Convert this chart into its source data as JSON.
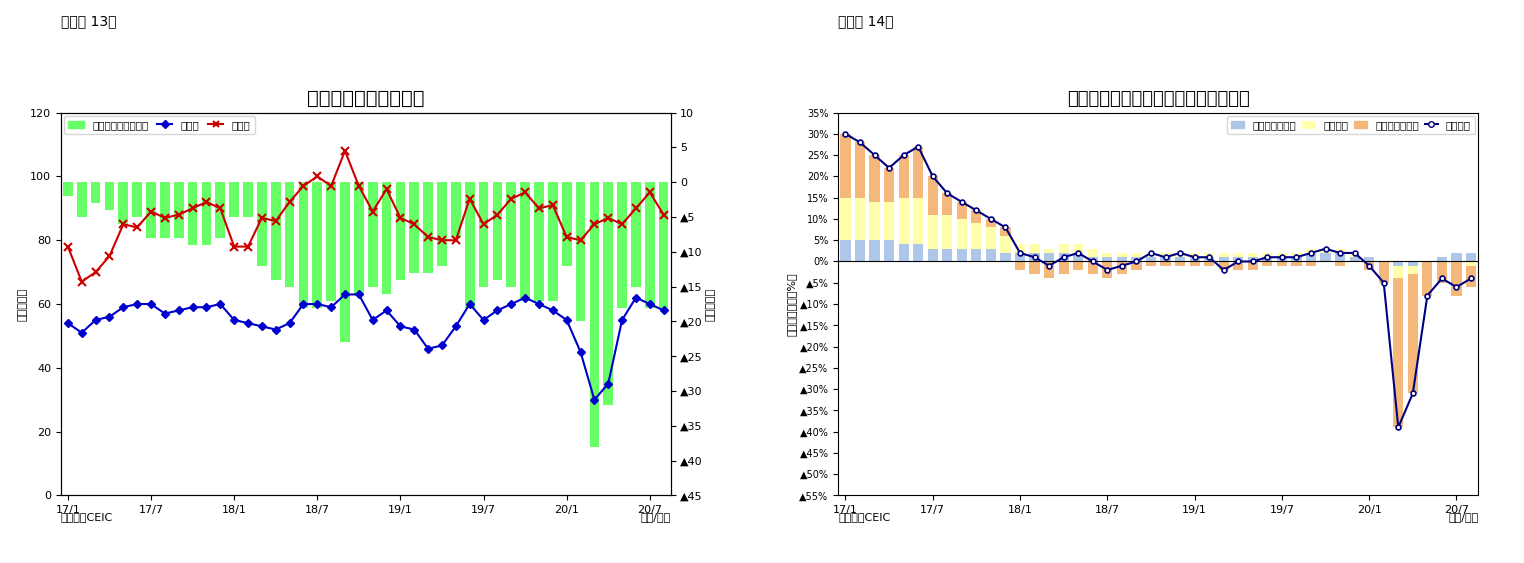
{
  "chart1": {
    "title": "フィリピンの貿易収支",
    "supertitle": "（図表 13）",
    "ylabel_left": "（億ドル）",
    "ylabel_right": "（億ドル）",
    "source": "（資料）CEIC",
    "xlabel": "（年/月）",
    "ylim_left": [
      0,
      120
    ],
    "ylim_right": [
      -45,
      10
    ],
    "yticks_left": [
      0,
      20,
      40,
      60,
      80,
      100,
      120
    ],
    "yticks_right": [
      10,
      5,
      0,
      -5,
      -10,
      -15,
      -20,
      -25,
      -30,
      -35,
      -40,
      -45
    ],
    "ytick_labels_right": [
      "10",
      "5",
      "0",
      "▲5",
      "▲10",
      "▲15",
      "▲20",
      "▲25",
      "▲30",
      "▲35",
      "▲40",
      "▲45"
    ],
    "export": [
      54,
      51,
      55,
      56,
      59,
      60,
      60,
      57,
      58,
      59,
      59,
      60,
      55,
      54,
      53,
      52,
      54,
      60,
      60,
      59,
      63,
      63,
      55,
      58,
      53,
      52,
      46,
      47,
      53,
      60,
      55,
      58,
      60,
      62,
      60,
      58,
      55,
      45,
      30,
      35,
      55,
      62,
      60,
      58
    ],
    "import_": [
      78,
      67,
      70,
      75,
      85,
      84,
      89,
      87,
      88,
      90,
      92,
      90,
      78,
      78,
      87,
      86,
      92,
      97,
      100,
      97,
      108,
      97,
      89,
      96,
      87,
      85,
      81,
      80,
      80,
      93,
      85,
      88,
      93,
      95,
      90,
      91,
      81,
      80,
      85,
      87,
      85,
      90,
      95,
      88
    ],
    "trade_balance_right": [
      -2,
      -5,
      -3,
      -4,
      -6,
      -5,
      -8,
      -8,
      -8,
      -9,
      -9,
      -8,
      -5,
      -5,
      -12,
      -14,
      -15,
      -18,
      -18,
      -17,
      -23,
      -16,
      -15,
      -16,
      -14,
      -13,
      -13,
      -12,
      -8,
      -18,
      -15,
      -14,
      -15,
      -17,
      -17,
      -17,
      -12,
      -20,
      -38,
      -32,
      -18,
      -15,
      -18,
      -18
    ],
    "bar_color": "#66FF66",
    "export_color": "#0000CC",
    "import_color": "#CC0000",
    "legend_bar": "貿易収支（右目盛）",
    "legend_export": "輸出額",
    "legend_import": "輸入額",
    "xtick_positions": [
      0,
      6,
      12,
      18,
      24,
      30,
      36,
      42
    ],
    "xtick_labels": [
      "17/1",
      "17/7",
      "18/1",
      "18/7",
      "19/1",
      "19/7",
      "20/1",
      "20/7"
    ]
  },
  "chart2": {
    "title": "フィリピン　輸出の伸び率（品目別）",
    "supertitle": "（図表 14）",
    "ylabel_left": "（前年同期比、%）",
    "source": "（資料）CEIC",
    "xlabel": "（年/月）",
    "ylim": [
      -55,
      35
    ],
    "yticks": [
      35,
      30,
      25,
      20,
      15,
      10,
      5,
      0,
      -5,
      -10,
      -15,
      -20,
      -25,
      -30,
      -35,
      -40,
      -45,
      -50,
      -55
    ],
    "ytick_labels": [
      "35%",
      "30%",
      "25%",
      "20%",
      "15%",
      "10%",
      "5%",
      "0%",
      "▲5%",
      "▲10%",
      "▲15%",
      "▲20%",
      "▲25%",
      "▲30%",
      "▲35%",
      "▲40%",
      "▲45%",
      "▲50%",
      "▲55%"
    ],
    "primary": [
      5,
      5,
      5,
      5,
      4,
      4,
      3,
      3,
      3,
      3,
      3,
      2,
      2,
      2,
      2,
      2,
      2,
      1,
      1,
      1,
      1,
      1,
      1,
      1,
      1,
      1,
      1,
      1,
      1,
      1,
      1,
      1,
      2,
      2,
      2,
      1,
      1,
      0,
      -1,
      -1,
      0,
      1,
      2,
      2
    ],
    "electronics": [
      10,
      10,
      9,
      9,
      11,
      11,
      8,
      8,
      7,
      6,
      5,
      4,
      2,
      2,
      1,
      2,
      2,
      2,
      1,
      1,
      1,
      1,
      1,
      1,
      1,
      1,
      1,
      1,
      1,
      1,
      1,
      1,
      1,
      1,
      1,
      1,
      0,
      0,
      -3,
      -2,
      0,
      0,
      0,
      -1
    ],
    "others": [
      15,
      13,
      11,
      8,
      10,
      12,
      9,
      5,
      4,
      3,
      2,
      2,
      -2,
      -3,
      -4,
      -3,
      -2,
      -3,
      -4,
      -3,
      -2,
      -1,
      -1,
      -1,
      -1,
      -1,
      -2,
      -2,
      -2,
      -1,
      -1,
      -1,
      -1,
      0,
      -1,
      0,
      -2,
      -5,
      -35,
      -28,
      -8,
      -5,
      -8,
      -5
    ],
    "total": [
      30,
      28,
      25,
      22,
      25,
      27,
      20,
      16,
      14,
      12,
      10,
      8,
      2,
      1,
      -1,
      1,
      2,
      0,
      -2,
      -1,
      0,
      2,
      1,
      2,
      1,
      1,
      -2,
      0,
      0,
      1,
      1,
      1,
      2,
      3,
      2,
      2,
      -1,
      -5,
      -39,
      -31,
      -8,
      -4,
      -6,
      -4
    ],
    "primary_color": "#AEC6E8",
    "electronics_color": "#FFFFAA",
    "others_color": "#F4B87A",
    "total_color": "#000080",
    "legend_primary": "一次産品・燃料",
    "legend_electronics": "電子製品",
    "legend_others": "その他製品など",
    "legend_total": "輸出合計",
    "xtick_positions": [
      0,
      6,
      12,
      18,
      24,
      30,
      36,
      42
    ],
    "xtick_labels": [
      "17/1",
      "17/7",
      "18/1",
      "18/7",
      "19/1",
      "19/7",
      "20/1",
      "20/7"
    ]
  }
}
